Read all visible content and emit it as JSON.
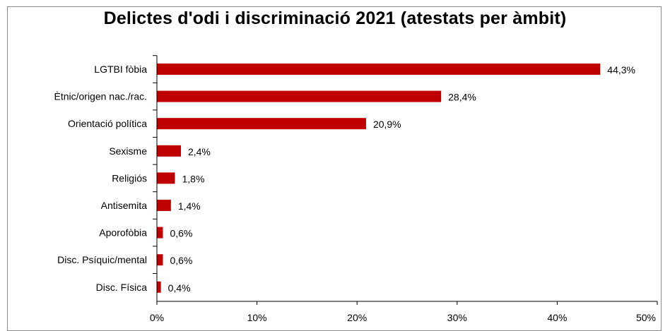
{
  "chart_data": {
    "type": "bar",
    "orientation": "horizontal",
    "title": "Delictes d'odi i discriminació 2021 (atestats per àmbit)",
    "categories": [
      "LGTBI fòbia",
      "Ètnic/origen nac./rac.",
      "Orientació política",
      "Sexisme",
      "Religiós",
      "Antisemita",
      "Aporofòbia",
      "Disc. Psíquic/mental",
      "Disc. Física"
    ],
    "values": [
      44.3,
      28.4,
      20.9,
      2.4,
      1.8,
      1.4,
      0.6,
      0.6,
      0.4
    ],
    "value_labels": [
      "44,3%",
      "28,4%",
      "20,9%",
      "2,4%",
      "1,8%",
      "1,4%",
      "0,6%",
      "0,6%",
      "0,4%"
    ],
    "xlim": [
      0,
      50
    ],
    "xticks": [
      0,
      10,
      20,
      30,
      40,
      50
    ],
    "xtick_labels": [
      "0%",
      "10%",
      "20%",
      "30%",
      "40%",
      "50%"
    ],
    "xlabel": "",
    "ylabel": "",
    "grid": false,
    "bar_color": "#c00000"
  }
}
